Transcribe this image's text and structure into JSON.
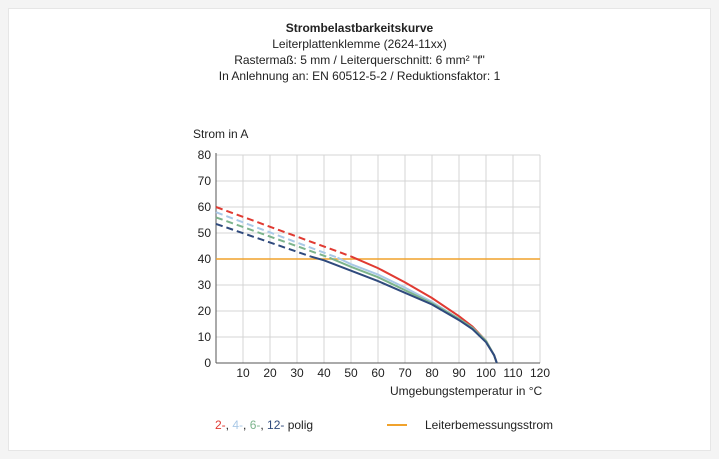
{
  "colors": {
    "red": "#e03a32",
    "lightblue": "#a9c8e6",
    "green": "#7cb48c",
    "darkblue": "#2f4a7d",
    "orange": "#f0a22c",
    "grid": "#d4d4d4",
    "axis": "#555555"
  },
  "chart_data": {
    "type": "line",
    "title": "Strombelastbarkeitskurve",
    "subtitles": [
      "Leiterplattenklemme (2624-11xx)",
      "Rastermaß: 5 mm / Leiterquerschnitt: 6 mm² \"f\"",
      "In Anlehnung an: EN 60512-5-2 / Reduktionsfaktor: 1"
    ],
    "ylabel": "Strom in A",
    "xlabel": "Umgebungstemperatur in °C",
    "xlim": [
      0,
      120
    ],
    "ylim": [
      0,
      80
    ],
    "xticks": [
      10,
      20,
      30,
      40,
      50,
      60,
      70,
      80,
      90,
      100,
      110,
      120
    ],
    "yticks": [
      0,
      10,
      20,
      30,
      40,
      50,
      60,
      70,
      80
    ],
    "grid": true,
    "series": [
      {
        "name": "2-",
        "color_key": "red",
        "dashed": [
          [
            0,
            60
          ],
          [
            50,
            41
          ]
        ],
        "solid": [
          [
            50,
            41
          ],
          [
            60,
            36.5
          ],
          [
            70,
            31
          ],
          [
            80,
            25
          ],
          [
            90,
            18
          ],
          [
            95,
            14
          ],
          [
            100,
            8.5
          ],
          [
            103,
            3
          ],
          [
            104,
            0
          ]
        ]
      },
      {
        "name": "4-",
        "color_key": "lightblue",
        "dashed": [
          [
            0,
            58
          ],
          [
            45,
            40.5
          ]
        ],
        "solid": [
          [
            45,
            40.5
          ],
          [
            50,
            38
          ],
          [
            60,
            34
          ],
          [
            70,
            29
          ],
          [
            80,
            23.5
          ],
          [
            90,
            17
          ],
          [
            95,
            13.5
          ],
          [
            100,
            8.5
          ],
          [
            103,
            3
          ],
          [
            104,
            0
          ]
        ]
      },
      {
        "name": "6-",
        "color_key": "green",
        "dashed": [
          [
            0,
            56
          ],
          [
            42,
            40.5
          ]
        ],
        "solid": [
          [
            42,
            40.5
          ],
          [
            50,
            37
          ],
          [
            60,
            33
          ],
          [
            70,
            28
          ],
          [
            80,
            23
          ],
          [
            90,
            17
          ],
          [
            95,
            13.5
          ],
          [
            100,
            8.5
          ],
          [
            103,
            3
          ],
          [
            104,
            0
          ]
        ]
      },
      {
        "name": "12-",
        "color_key": "darkblue",
        "dashed": [
          [
            0,
            53.5
          ],
          [
            35,
            41
          ]
        ],
        "solid": [
          [
            35,
            41
          ],
          [
            40,
            39.5
          ],
          [
            50,
            35.5
          ],
          [
            60,
            31.5
          ],
          [
            70,
            27
          ],
          [
            80,
            22.5
          ],
          [
            90,
            16.5
          ],
          [
            95,
            13
          ],
          [
            100,
            8
          ],
          [
            103,
            3
          ],
          [
            104,
            0
          ]
        ]
      },
      {
        "name": "Leiterbemessungsstrom",
        "color_key": "orange",
        "solid": [
          [
            0,
            40
          ],
          [
            120,
            40
          ]
        ]
      }
    ],
    "legend": {
      "poles": [
        {
          "text": "2-",
          "color_key": "red"
        },
        {
          "text": ", ",
          "color_key": null
        },
        {
          "text": "4-",
          "color_key": "lightblue"
        },
        {
          "text": ", ",
          "color_key": null
        },
        {
          "text": "6-",
          "color_key": "green"
        },
        {
          "text": ", ",
          "color_key": null
        },
        {
          "text": "12-",
          "color_key": "darkblue"
        }
      ],
      "poles_suffix": " polig",
      "rated_label": "Leiterbemessungsstrom"
    }
  }
}
